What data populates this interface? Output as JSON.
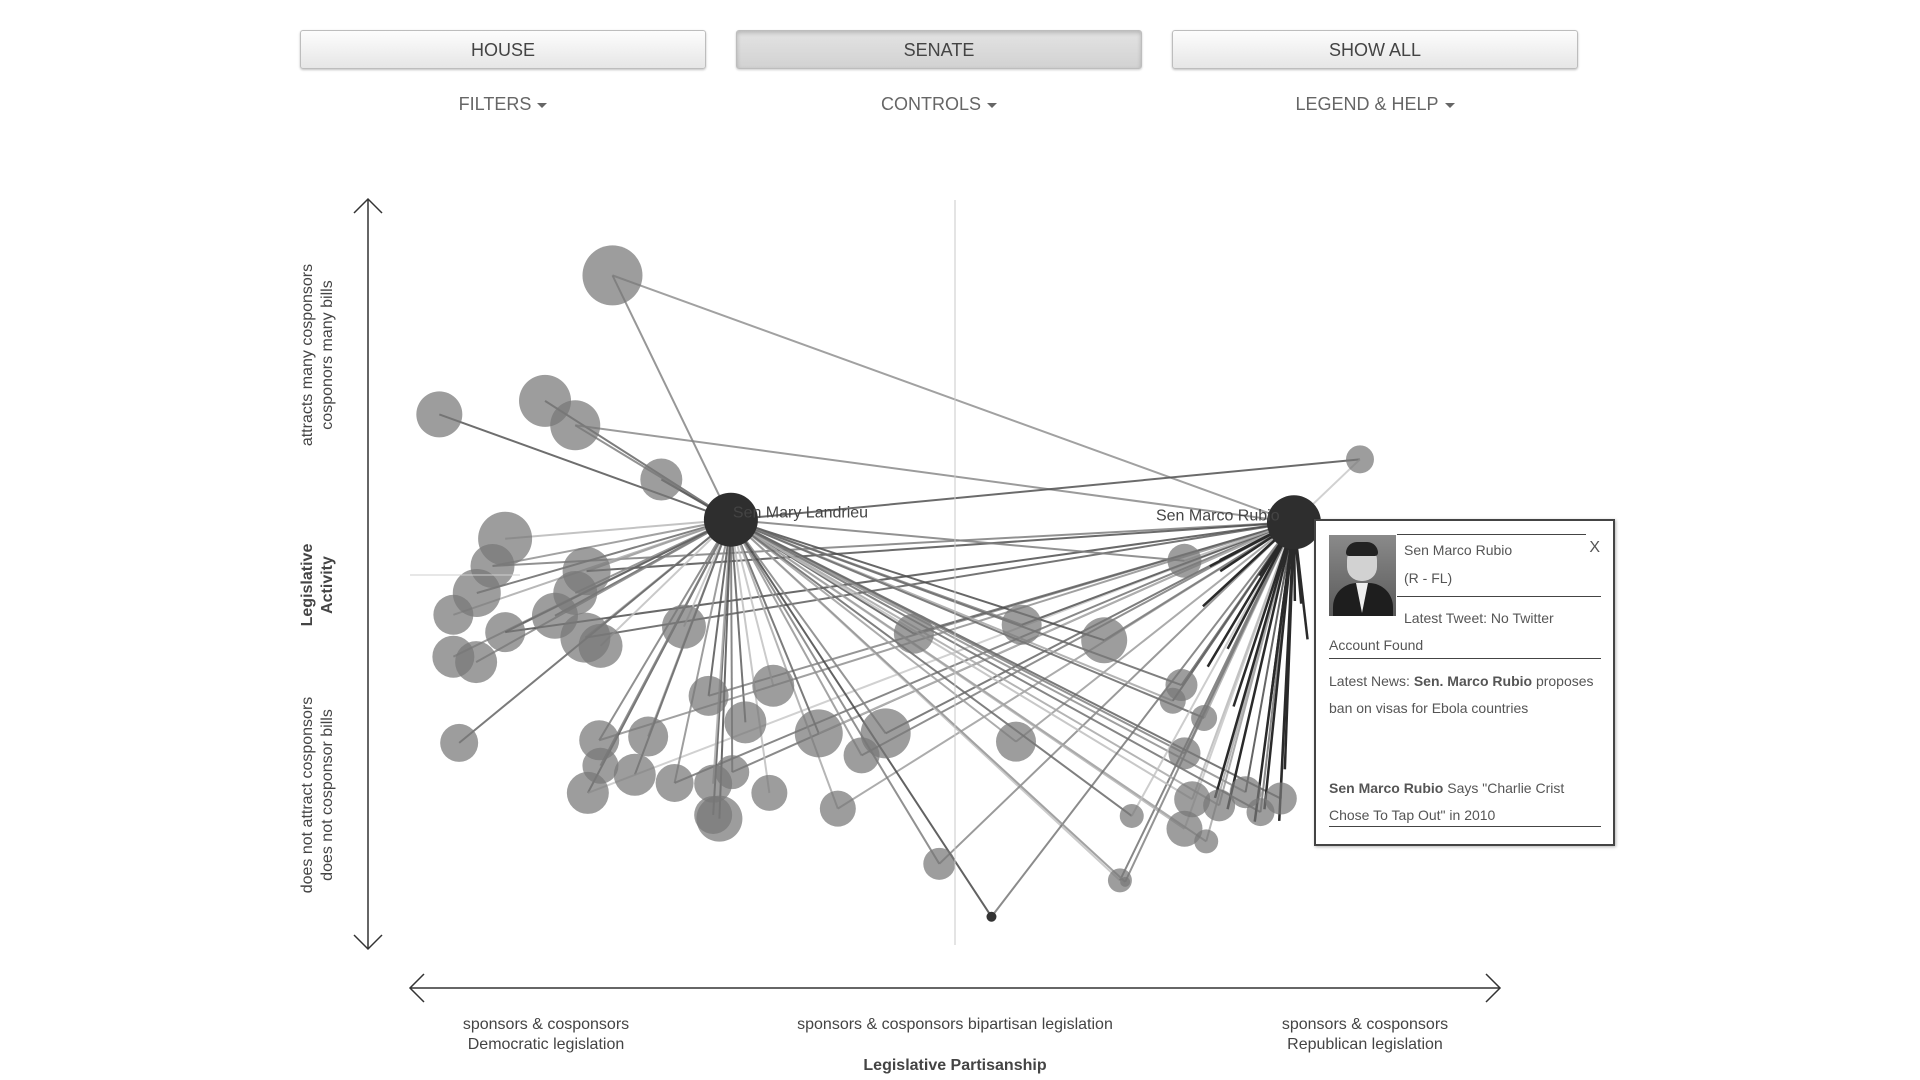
{
  "nav": {
    "house_label": "HOUSE",
    "senate_label": "SENATE",
    "showall_label": "SHOW ALL",
    "filters_label": "FILTERS",
    "controls_label": "CONTROLS",
    "legend_label": "LEGEND & HELP"
  },
  "axes": {
    "y_title": [
      "Legislative",
      "Activity"
    ],
    "y_top": [
      "attracts many cosponsors",
      "cosponors many bills"
    ],
    "y_bottom": [
      "does not attract cosponsors",
      "does not cosponsor bills"
    ],
    "x_title": "Legislative Partisanship",
    "x_left": [
      "sponsors & cosponsors",
      "Democratic legislation"
    ],
    "x_center": "sponsors & cosponsors bipartisan legislation",
    "x_right": [
      "sponsors & cosponsors",
      "Republican legislation"
    ]
  },
  "chart_data": {
    "type": "scatter",
    "highlighted": [
      {
        "name": "Sen Mary Landrieu",
        "x": 0.2878,
        "y": 0.5747
      },
      {
        "name": "Sen Marco Rubio",
        "x": 0.7928,
        "y": 0.5712
      }
    ],
    "points": [
      {
        "x": 0.1816,
        "y": 0.9049,
        "r": 30
      },
      {
        "x": 0.0263,
        "y": 0.717,
        "r": 23
      },
      {
        "x": 0.1211,
        "y": 0.7353,
        "r": 26
      },
      {
        "x": 0.1482,
        "y": 0.7023,
        "r": 25
      },
      {
        "x": 0.2254,
        "y": 0.629,
        "r": 21
      },
      {
        "x": 0.0853,
        "y": 0.549,
        "r": 27
      },
      {
        "x": 0.074,
        "y": 0.5122,
        "r": 22
      },
      {
        "x": 0.0599,
        "y": 0.4757,
        "r": 24
      },
      {
        "x": 0.0389,
        "y": 0.4462,
        "r": 20
      },
      {
        "x": 0.1584,
        "y": 0.5052,
        "r": 24
      },
      {
        "x": 0.1482,
        "y": 0.4757,
        "r": 22
      },
      {
        "x": 0.13,
        "y": 0.4449,
        "r": 23
      },
      {
        "x": 0.1573,
        "y": 0.4154,
        "r": 25
      },
      {
        "x": 0.0389,
        "y": 0.3896,
        "r": 21
      },
      {
        "x": 0.0593,
        "y": 0.3823,
        "r": 21
      },
      {
        "x": 0.0854,
        "y": 0.4228,
        "r": 20
      },
      {
        "x": 0.1709,
        "y": 0.4043,
        "r": 22
      },
      {
        "x": 0.2457,
        "y": 0.4302,
        "r": 22
      },
      {
        "x": 0.2678,
        "y": 0.3367,
        "r": 20
      },
      {
        "x": 0.3258,
        "y": 0.3503,
        "r": 21
      },
      {
        "x": 0.3008,
        "y": 0.3009,
        "r": 21
      },
      {
        "x": 0.1697,
        "y": 0.2767,
        "r": 20
      },
      {
        "x": 0.2136,
        "y": 0.2817,
        "r": 20
      },
      {
        "x": 0.2016,
        "y": 0.23,
        "r": 21
      },
      {
        "x": 0.1595,
        "y": 0.2055,
        "r": 21
      },
      {
        "x": 0.1708,
        "y": 0.2423,
        "r": 18
      },
      {
        "x": 0.0441,
        "y": 0.2731,
        "r": 19
      },
      {
        "x": 0.2373,
        "y": 0.219,
        "r": 19
      },
      {
        "x": 0.2719,
        "y": 0.1757,
        "r": 19
      },
      {
        "x": 0.2719,
        "y": 0.218,
        "r": 19
      },
      {
        "x": 0.289,
        "y": 0.2336,
        "r": 17
      },
      {
        "x": 0.2775,
        "y": 0.1707,
        "r": 23
      },
      {
        "x": 0.3223,
        "y": 0.2055,
        "r": 18
      },
      {
        "x": 0.3666,
        "y": 0.286,
        "r": 24
      },
      {
        "x": 0.4266,
        "y": 0.286,
        "r": 25
      },
      {
        "x": 0.405,
        "y": 0.2562,
        "r": 18
      },
      {
        "x": 0.3837,
        "y": 0.1843,
        "r": 18
      },
      {
        "x": 0.4519,
        "y": 0.4208,
        "r": 20
      },
      {
        "x": 0.5486,
        "y": 0.4327,
        "r": 20
      },
      {
        "x": 0.6226,
        "y": 0.4119,
        "r": 23
      },
      {
        "x": 0.5435,
        "y": 0.2748,
        "r": 20
      },
      {
        "x": 0.6367,
        "y": 0.0873,
        "r": 12
      },
      {
        "x": 0.4747,
        "y": 0.1097,
        "r": 16
      },
      {
        "x": 0.6946,
        "y": 0.5192,
        "r": 17
      },
      {
        "x": 0.6946,
        "y": 0.259,
        "r": 16
      },
      {
        "x": 0.6919,
        "y": 0.3513,
        "r": 16
      },
      {
        "x": 0.6841,
        "y": 0.33,
        "r": 13
      },
      {
        "x": 0.7122,
        "y": 0.3068,
        "r": 13
      },
      {
        "x": 0.6946,
        "y": 0.1571,
        "r": 18
      },
      {
        "x": 0.7015,
        "y": 0.197,
        "r": 18
      },
      {
        "x": 0.7257,
        "y": 0.1887,
        "r": 16
      },
      {
        "x": 0.7494,
        "y": 0.2065,
        "r": 16
      },
      {
        "x": 0.7628,
        "y": 0.1796,
        "r": 14
      },
      {
        "x": 0.781,
        "y": 0.1979,
        "r": 16
      },
      {
        "x": 0.7141,
        "y": 0.14,
        "r": 12
      },
      {
        "x": 0.6473,
        "y": 0.1744,
        "r": 12
      },
      {
        "x": 0.5215,
        "y": 0.0382,
        "r": 5,
        "dark": true
      },
      {
        "x": 0.6414,
        "y": 0.0853,
        "r": 5
      },
      {
        "x": 0.852,
        "y": 0.6563,
        "r": 14
      }
    ],
    "xlim": [
      0,
      1
    ],
    "ylim": [
      0,
      1
    ]
  },
  "popup": {
    "name": "Sen Marco Rubio",
    "party": "(R - FL)",
    "close": "X",
    "tweet": "Latest Tweet: No Twitter Account Found",
    "news_prefix": "Latest News: ",
    "news_bold": "Sen. Marco Rubio",
    "news_rest": " proposes ban on visas for Ebola countries",
    "quote_bold": "Sen Marco Rubio",
    "quote_rest": " Says \"Charlie Crist Chose To Tap Out\" in 2010"
  }
}
